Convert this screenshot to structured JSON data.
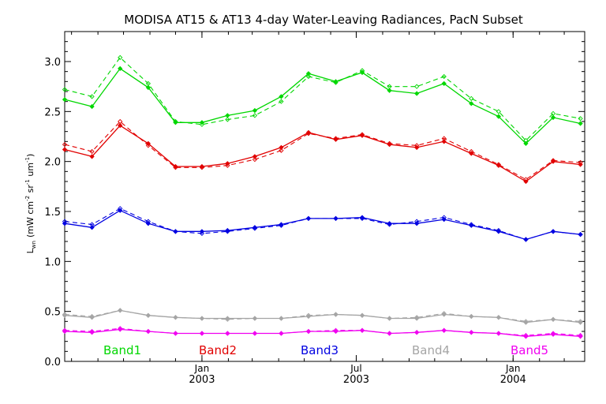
{
  "chart_data": {
    "type": "line",
    "title": "MODISA AT15 & AT13 4-day Water-Leaving Radiances, PacN Subset",
    "ylabel_main": "L",
    "ylabel_sub": "wn",
    "ylabel_units": "(mW cm",
    "ylabel_exp1": "-2",
    "ylabel_sr": " sr",
    "ylabel_exp2": "-1",
    "ylabel_um": " um",
    "ylabel_exp3": "-1",
    "ylabel_close": ")",
    "ylim": [
      0,
      3.3
    ],
    "yticks": [
      "0.0",
      "0.5",
      "1.0",
      "1.5",
      "2.0",
      "2.5",
      "3.0"
    ],
    "xlim": [
      "2002-07-24",
      "2004-03-25"
    ],
    "xticks": [
      {
        "date": "2003-01-01",
        "month": "Jan",
        "year": "2003"
      },
      {
        "date": "2003-07-01",
        "month": "Jul",
        "year": "2003"
      },
      {
        "date": "2004-01-01",
        "month": "Jan",
        "year": "2004"
      }
    ],
    "x": [
      "2002-07-24",
      "2002-08-25",
      "2002-09-27",
      "2002-10-30",
      "2002-12-01",
      "2003-01-01",
      "2003-01-31",
      "2003-03-04",
      "2003-04-04",
      "2003-05-06",
      "2003-06-07",
      "2003-07-08",
      "2003-08-09",
      "2003-09-10",
      "2003-10-12",
      "2003-11-13",
      "2003-12-15",
      "2004-01-16",
      "2004-02-17",
      "2004-03-20"
    ],
    "series": [
      {
        "name": "Band1",
        "color": "#00d700",
        "solid": [
          2.62,
          2.55,
          2.93,
          2.74,
          2.39,
          2.39,
          2.46,
          2.51,
          2.65,
          2.88,
          2.8,
          2.89,
          2.71,
          2.68,
          2.78,
          2.58,
          2.45,
          2.18,
          2.44,
          2.38
        ],
        "dashed": [
          2.72,
          2.65,
          3.04,
          2.78,
          2.4,
          2.37,
          2.42,
          2.46,
          2.6,
          2.85,
          2.79,
          2.91,
          2.75,
          2.75,
          2.85,
          2.63,
          2.5,
          2.21,
          2.48,
          2.43
        ]
      },
      {
        "name": "Band2",
        "color": "#e10000",
        "solid": [
          2.12,
          2.05,
          2.36,
          2.18,
          1.95,
          1.95,
          1.98,
          2.05,
          2.14,
          2.29,
          2.22,
          2.26,
          2.17,
          2.14,
          2.2,
          2.08,
          1.96,
          1.8,
          2.0,
          1.97
        ],
        "dashed": [
          2.17,
          2.1,
          2.4,
          2.16,
          1.94,
          1.94,
          1.96,
          2.02,
          2.11,
          2.28,
          2.23,
          2.27,
          2.18,
          2.16,
          2.23,
          2.1,
          1.97,
          1.82,
          2.01,
          1.99
        ]
      },
      {
        "name": "Band3",
        "color": "#0000e1",
        "solid": [
          1.38,
          1.34,
          1.51,
          1.38,
          1.3,
          1.3,
          1.31,
          1.34,
          1.37,
          1.43,
          1.43,
          1.44,
          1.38,
          1.38,
          1.42,
          1.36,
          1.3,
          1.22,
          1.3,
          1.27
        ],
        "dashed": [
          1.4,
          1.37,
          1.53,
          1.4,
          1.3,
          1.28,
          1.3,
          1.33,
          1.36,
          1.43,
          1.43,
          1.43,
          1.37,
          1.4,
          1.44,
          1.37,
          1.31,
          1.22,
          1.3,
          1.27
        ]
      },
      {
        "name": "Band4",
        "color": "#a5a5a5",
        "solid": [
          0.46,
          0.44,
          0.51,
          0.46,
          0.44,
          0.43,
          0.43,
          0.43,
          0.43,
          0.45,
          0.47,
          0.46,
          0.43,
          0.43,
          0.47,
          0.45,
          0.44,
          0.39,
          0.42,
          0.39
        ],
        "dashed": [
          0.47,
          0.45,
          0.51,
          0.46,
          0.44,
          0.43,
          0.42,
          0.43,
          0.43,
          0.46,
          0.47,
          0.46,
          0.43,
          0.44,
          0.48,
          0.45,
          0.44,
          0.4,
          0.42,
          0.4
        ]
      },
      {
        "name": "Band5",
        "color": "#f000f0",
        "solid": [
          0.3,
          0.29,
          0.32,
          0.3,
          0.28,
          0.28,
          0.28,
          0.28,
          0.28,
          0.3,
          0.3,
          0.31,
          0.28,
          0.29,
          0.31,
          0.29,
          0.28,
          0.25,
          0.27,
          0.25
        ],
        "dashed": [
          0.31,
          0.3,
          0.33,
          0.3,
          0.28,
          0.28,
          0.28,
          0.28,
          0.28,
          0.3,
          0.31,
          0.31,
          0.28,
          0.29,
          0.31,
          0.29,
          0.28,
          0.26,
          0.28,
          0.26
        ]
      }
    ]
  }
}
